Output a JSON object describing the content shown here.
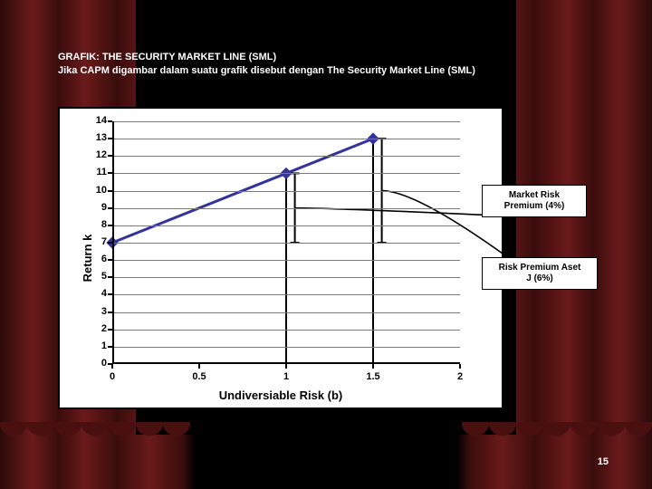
{
  "header": {
    "title": "GRAFIK: THE SECURITY MARKET LINE (SML)",
    "subtitle": "Jika CAPM digambar dalam suatu grafik disebut dengan The Security Market Line (SML)"
  },
  "chart": {
    "type": "line",
    "xlabel": "Undiversiable Risk (b)",
    "ylabel": "Return k",
    "xlim": [
      0,
      2
    ],
    "ylim": [
      0,
      14
    ],
    "xticks": [
      0,
      0.5,
      1,
      1.5,
      2
    ],
    "yticks": [
      0,
      1,
      2,
      3,
      4,
      5,
      6,
      7,
      8,
      9,
      10,
      11,
      12,
      13,
      14
    ],
    "grid_color": "#7a7a7a",
    "axis_color": "#000000",
    "background_color": "#ffffff",
    "line_color": "#333399",
    "line_width": 3,
    "marker_color": "#333399",
    "marker_size": 12,
    "points": [
      {
        "x": 0,
        "y": 7
      },
      {
        "x": 1,
        "y": 11
      },
      {
        "x": 1.5,
        "y": 13
      }
    ],
    "drop_lines": [
      {
        "x": 1,
        "y": 11
      },
      {
        "x": 1.5,
        "y": 13
      }
    ],
    "brackets": [
      {
        "x": 1.05,
        "y_top": 11,
        "y_bot": 7,
        "label_key": "market_risk"
      },
      {
        "x": 1.55,
        "y_top": 13,
        "y_bot": 7,
        "label_key": "asset_j"
      }
    ]
  },
  "callouts": {
    "market_risk": {
      "line1": "Market Risk",
      "line2": "Premium (4%)"
    },
    "asset_j": {
      "line1": "Risk Premium Aset",
      "line2": "J (6%)"
    }
  },
  "page_number": "15",
  "colors": {
    "curtain_dark": "#3a0c0c",
    "curtain_light": "#6a1a1a",
    "text": "#ffffff"
  }
}
